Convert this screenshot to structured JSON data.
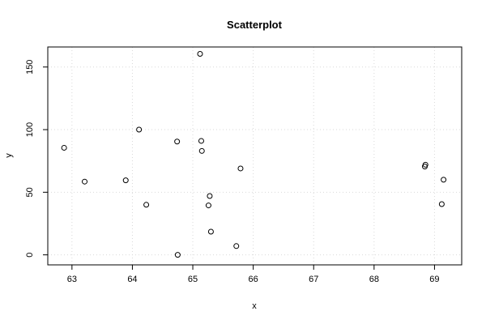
{
  "chart_data": {
    "type": "scatter",
    "title": "Scatterplot",
    "xlabel": "x",
    "ylabel": "y",
    "xlim": [
      62.6,
      69.45
    ],
    "ylim": [
      -8,
      166
    ],
    "x_ticks": [
      63,
      64,
      65,
      66,
      67,
      68,
      69
    ],
    "y_ticks": [
      0,
      50,
      100,
      150
    ],
    "grid": true,
    "points": [
      {
        "x": 62.87,
        "y": 85.5
      },
      {
        "x": 63.21,
        "y": 58.5
      },
      {
        "x": 63.89,
        "y": 59.5
      },
      {
        "x": 64.11,
        "y": 100
      },
      {
        "x": 64.23,
        "y": 40
      },
      {
        "x": 64.74,
        "y": 90.5
      },
      {
        "x": 64.75,
        "y": 0
      },
      {
        "x": 65.12,
        "y": 160.5
      },
      {
        "x": 65.14,
        "y": 91
      },
      {
        "x": 65.15,
        "y": 83
      },
      {
        "x": 65.26,
        "y": 39.5
      },
      {
        "x": 65.28,
        "y": 47
      },
      {
        "x": 65.3,
        "y": 18.5
      },
      {
        "x": 65.72,
        "y": 7
      },
      {
        "x": 65.79,
        "y": 69
      },
      {
        "x": 68.84,
        "y": 70.5
      },
      {
        "x": 68.85,
        "y": 72
      },
      {
        "x": 69.12,
        "y": 40.5
      },
      {
        "x": 69.15,
        "y": 60
      }
    ]
  }
}
